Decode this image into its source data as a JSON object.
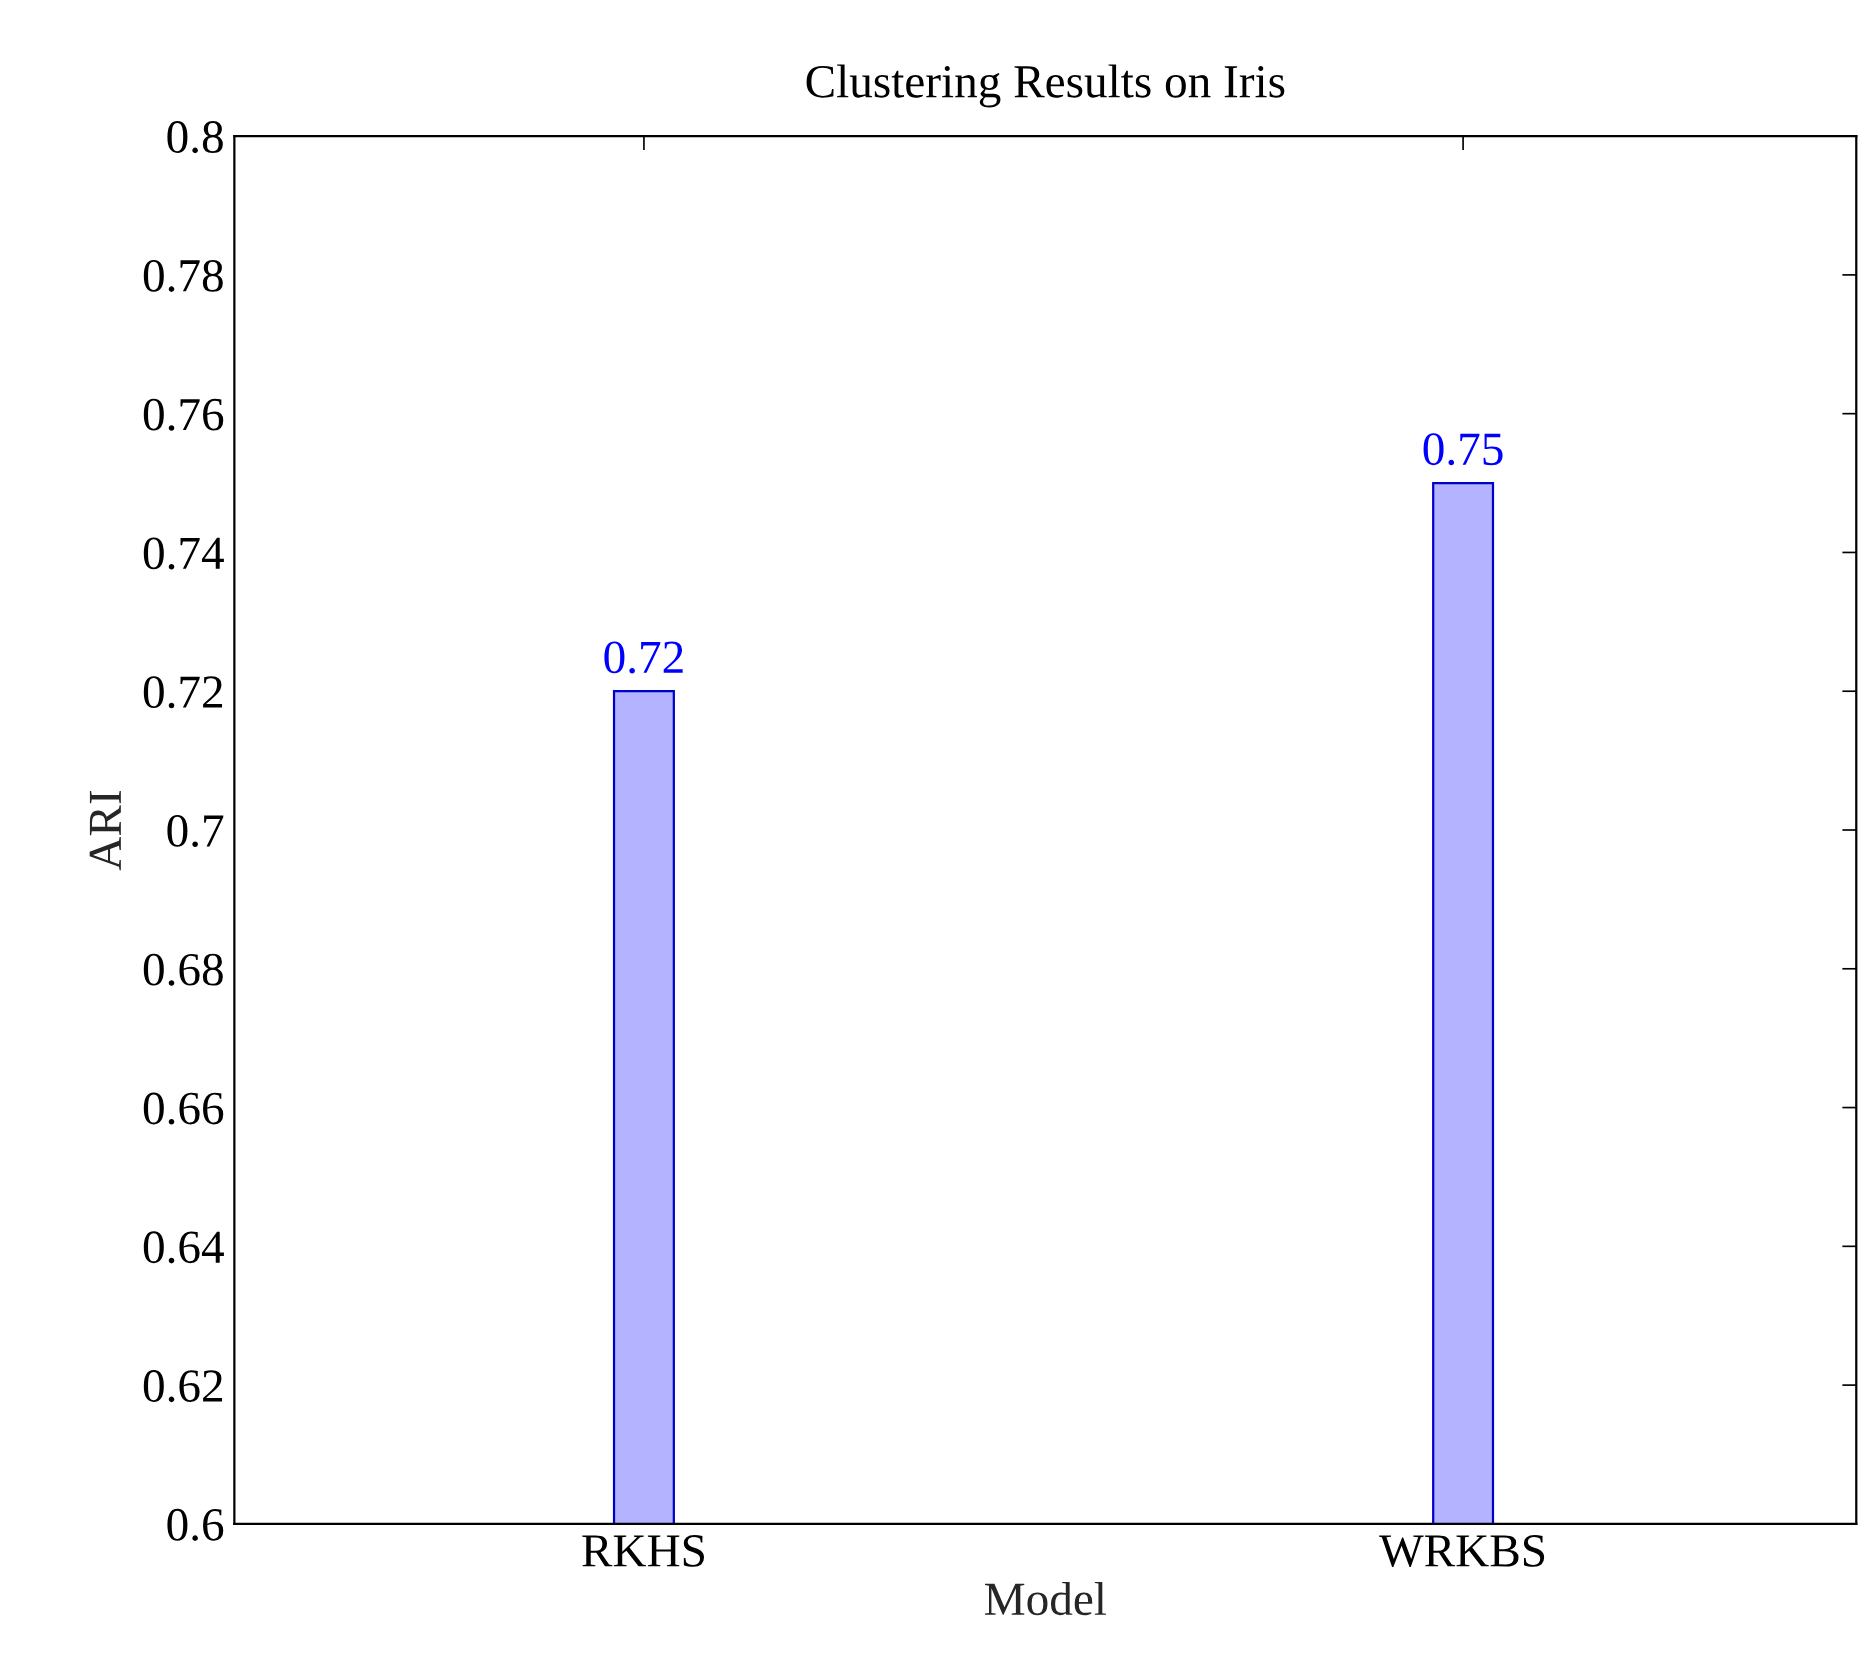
{
  "chart_data": {
    "type": "bar",
    "title": "Clustering Results on Iris",
    "xlabel": "Model",
    "ylabel": "ARI",
    "categories": [
      "RKHS",
      "WRKBS"
    ],
    "series": [
      {
        "color": "#b3b3ff",
        "values": [
          0.72,
          0.75
        ]
      }
    ],
    "ylim": [
      0.6,
      0.8
    ],
    "yticks": [
      0.6,
      0.62,
      0.64,
      0.66,
      0.68,
      0.7,
      0.72,
      0.74,
      0.76,
      0.78,
      0.8
    ],
    "data_labels": true,
    "grid": false
  }
}
